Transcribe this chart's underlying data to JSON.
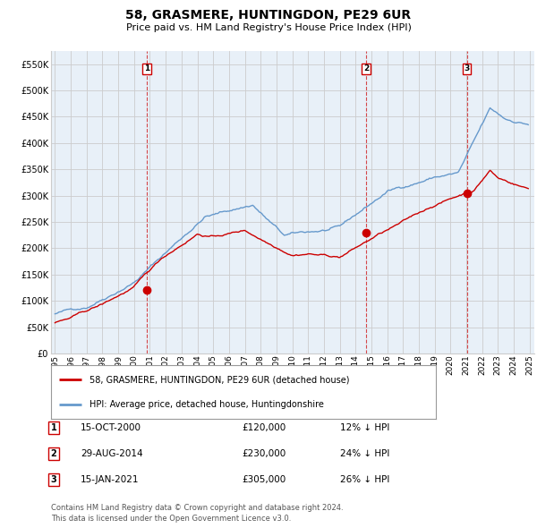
{
  "title": "58, GRASMERE, HUNTINGDON, PE29 6UR",
  "subtitle": "Price paid vs. HM Land Registry's House Price Index (HPI)",
  "legend_property": "58, GRASMERE, HUNTINGDON, PE29 6UR (detached house)",
  "legend_hpi": "HPI: Average price, detached house, Huntingdonshire",
  "footnote1": "Contains HM Land Registry data © Crown copyright and database right 2024.",
  "footnote2": "This data is licensed under the Open Government Licence v3.0.",
  "transactions": [
    {
      "label": "1",
      "date": "15-OCT-2000",
      "price": "£120,000",
      "pct": "12% ↓ HPI",
      "x_year": 2000.79,
      "y_val": 120000
    },
    {
      "label": "2",
      "date": "29-AUG-2014",
      "price": "£230,000",
      "pct": "24% ↓ HPI",
      "x_year": 2014.66,
      "y_val": 230000
    },
    {
      "label": "3",
      "date": "15-JAN-2021",
      "price": "£305,000",
      "pct": "26% ↓ HPI",
      "x_year": 2021.04,
      "y_val": 305000
    }
  ],
  "ylim": [
    0,
    575000
  ],
  "xlim_start": 1994.75,
  "xlim_end": 2025.3,
  "red_color": "#cc0000",
  "blue_color": "#6699cc",
  "blue_fill": "#dce9f5",
  "grid_color": "#cccccc",
  "bg_color": "#ffffff",
  "chart_bg": "#e8f0f8",
  "yticks": [
    0,
    50000,
    100000,
    150000,
    200000,
    250000,
    300000,
    350000,
    400000,
    450000,
    500000,
    550000
  ],
  "ytick_labels": [
    "£0",
    "£50K",
    "£100K",
    "£150K",
    "£200K",
    "£250K",
    "£300K",
    "£350K",
    "£400K",
    "£450K",
    "£500K",
    "£550K"
  ],
  "xticks": [
    1995,
    1996,
    1997,
    1998,
    1999,
    2000,
    2001,
    2002,
    2003,
    2004,
    2005,
    2006,
    2007,
    2008,
    2009,
    2010,
    2011,
    2012,
    2013,
    2014,
    2015,
    2016,
    2017,
    2018,
    2019,
    2020,
    2021,
    2022,
    2023,
    2024,
    2025
  ]
}
